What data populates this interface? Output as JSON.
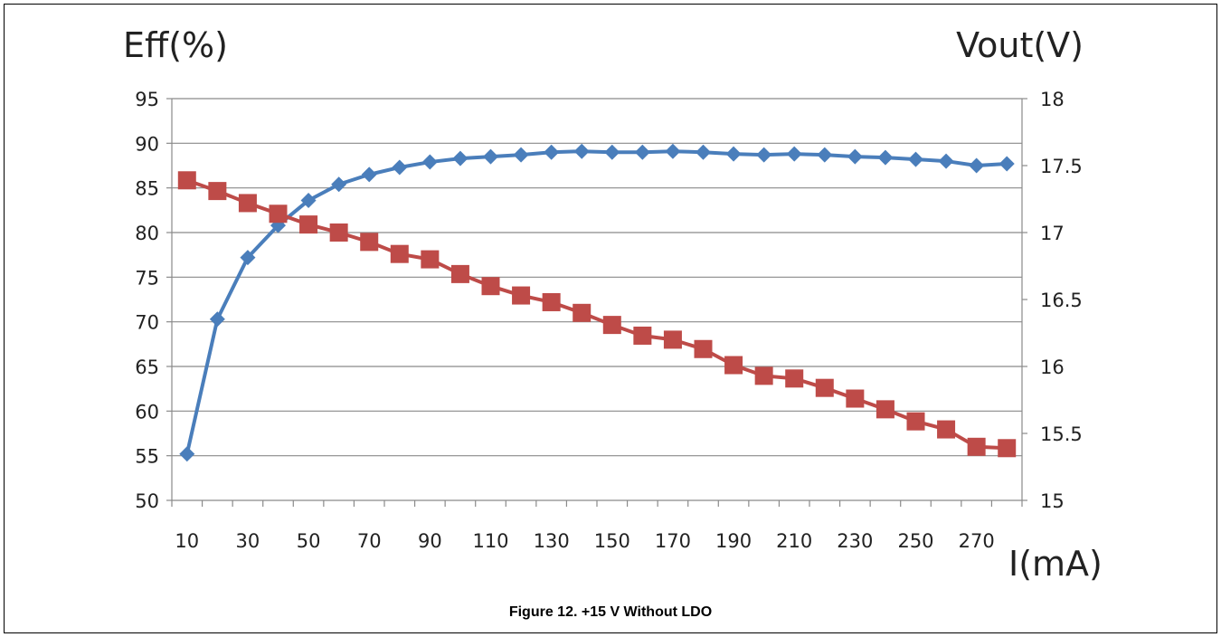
{
  "caption": "Figure 12. +15 V Without LDO",
  "chart_data": {
    "type": "line",
    "left_axis_title": "Eff(%)",
    "right_axis_title": "Vout(V)",
    "xlabel": "I(mA)",
    "ylim": [
      50,
      95
    ],
    "y_ticks": [
      50,
      55,
      60,
      65,
      70,
      75,
      80,
      85,
      90,
      95
    ],
    "y2lim": [
      15,
      18
    ],
    "y2_ticks": [
      "15",
      "15.5",
      "16",
      "16.5",
      "17",
      "17.5",
      "18"
    ],
    "x": [
      10,
      20,
      30,
      40,
      50,
      60,
      70,
      80,
      90,
      100,
      110,
      120,
      130,
      140,
      150,
      160,
      170,
      180,
      190,
      200,
      210,
      220,
      230,
      240,
      250,
      260,
      270,
      280
    ],
    "x_tick_labels": [
      "10",
      "30",
      "50",
      "70",
      "90",
      "110",
      "130",
      "150",
      "170",
      "190",
      "210",
      "230",
      "250",
      "270"
    ],
    "grid": "horizontal",
    "series": [
      {
        "axis": "left",
        "color": "#4a7ebb",
        "marker": "diamond",
        "values": [
          55.2,
          70.3,
          77.2,
          80.8,
          83.6,
          85.4,
          86.5,
          87.3,
          87.9,
          88.3,
          88.5,
          88.7,
          89.0,
          89.1,
          89.0,
          89.0,
          89.1,
          89.0,
          88.8,
          88.7,
          88.8,
          88.7,
          88.5,
          88.4,
          88.2,
          88.0,
          87.5,
          87.7
        ]
      },
      {
        "axis": "right",
        "color": "#be4b48",
        "marker": "square",
        "values": [
          17.39,
          17.31,
          17.22,
          17.14,
          17.06,
          17.0,
          16.93,
          16.84,
          16.8,
          16.69,
          16.6,
          16.53,
          16.48,
          16.4,
          16.31,
          16.23,
          16.2,
          16.13,
          16.01,
          15.93,
          15.91,
          15.84,
          15.76,
          15.68,
          15.59,
          15.53,
          15.4,
          15.39
        ]
      }
    ]
  }
}
